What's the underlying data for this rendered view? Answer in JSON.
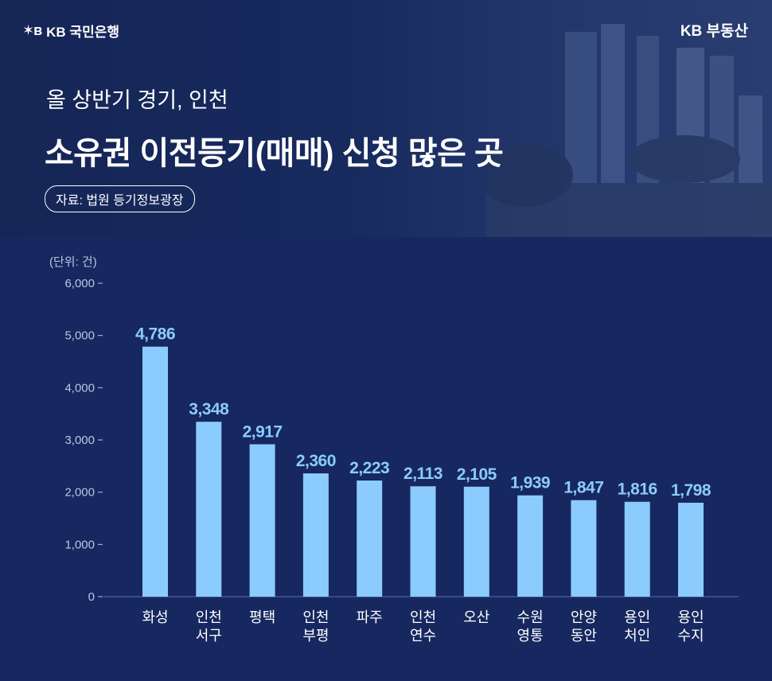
{
  "brand": {
    "left_label": "KB 국민은행",
    "right_label": "KB 부동산"
  },
  "header": {
    "subtitle": "올 상반기 경기, 인천",
    "title": "소유권 이전등기(매매) 신청 많은 곳",
    "source": "자료: 법원 등기정보광장"
  },
  "colors": {
    "background": "#16285f",
    "bar": "#8ccbfd",
    "value_label": "#8ccbfd",
    "axis_text": "#b9c6e6",
    "category_text": "#ffffff"
  },
  "chart_data": {
    "type": "bar",
    "unit_label": "(단위: 건)",
    "categories": [
      [
        "화성"
      ],
      [
        "인천",
        "서구"
      ],
      [
        "평택"
      ],
      [
        "인천",
        "부평"
      ],
      [
        "파주"
      ],
      [
        "인천",
        "연수"
      ],
      [
        "오산"
      ],
      [
        "수원",
        "영통"
      ],
      [
        "안양",
        "동안"
      ],
      [
        "용인",
        "처인"
      ],
      [
        "용인",
        "수지"
      ]
    ],
    "values": [
      4786,
      3348,
      2917,
      2360,
      2223,
      2113,
      2105,
      1939,
      1847,
      1816,
      1798
    ],
    "value_labels": [
      "4,786",
      "3,348",
      "2,917",
      "2,360",
      "2,223",
      "2,113",
      "2,105",
      "1,939",
      "1,847",
      "1,816",
      "1,798"
    ],
    "y_ticks": [
      0,
      1000,
      2000,
      3000,
      4000,
      5000,
      6000
    ],
    "y_tick_labels": [
      "0",
      "1,000",
      "2,000",
      "3,000",
      "4,000",
      "5,000",
      "6,000"
    ],
    "ylim": [
      0,
      6000
    ]
  }
}
